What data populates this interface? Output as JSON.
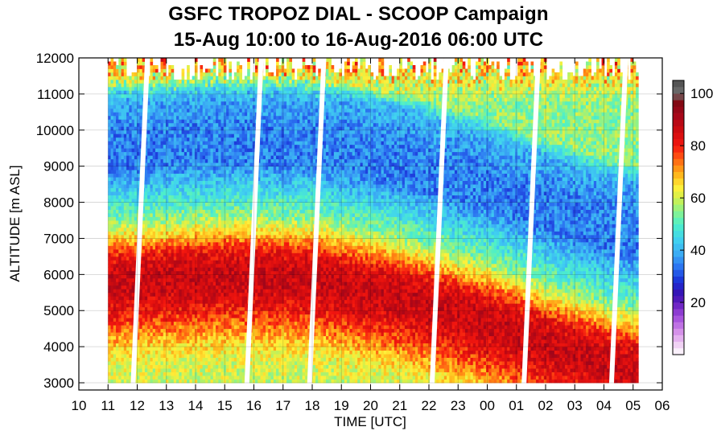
{
  "chart_data": {
    "type": "heatmap",
    "title": "GSFC TROPOZ DIAL - SCOOP Campaign",
    "subtitle": "15-Aug 10:00 to 16-Aug-2016 06:00 UTC",
    "xlabel": "TIME [UTC]",
    "ylabel": "ALTITUDE [m ASL]",
    "x_tick_labels": [
      "10",
      "11",
      "12",
      "13",
      "14",
      "15",
      "16",
      "17",
      "18",
      "19",
      "20",
      "21",
      "22",
      "23",
      "00",
      "01",
      "02",
      "03",
      "04",
      "05",
      "06"
    ],
    "y_ticks": [
      3000,
      4000,
      5000,
      6000,
      7000,
      8000,
      9000,
      10000,
      11000,
      12000
    ],
    "ylim": [
      2800,
      12000
    ],
    "xlim_hours": [
      10,
      30
    ],
    "data_start_hour": 11,
    "data_end_hour": 29.1,
    "colorbar_ticks": [
      20,
      40,
      60,
      80,
      100
    ],
    "colorbar_range": [
      0,
      105
    ],
    "grid": true,
    "ozone_ppbv_profile": [
      {
        "altitude": 3000,
        "ppbv": 60
      },
      {
        "altitude": 3500,
        "ppbv": 61
      },
      {
        "altitude": 4000,
        "ppbv": 66
      },
      {
        "altitude": 4500,
        "ppbv": 74
      },
      {
        "altitude": 5000,
        "ppbv": 82
      },
      {
        "altitude": 5500,
        "ppbv": 86
      },
      {
        "altitude": 6000,
        "ppbv": 87
      },
      {
        "altitude": 6500,
        "ppbv": 82
      },
      {
        "altitude": 7000,
        "ppbv": 68
      },
      {
        "altitude": 7500,
        "ppbv": 55
      },
      {
        "altitude": 8000,
        "ppbv": 48
      },
      {
        "altitude": 9000,
        "ppbv": 35
      },
      {
        "altitude": 10000,
        "ppbv": 35
      },
      {
        "altitude": 11000,
        "ppbv": 40
      },
      {
        "altitude": 11500,
        "ppbv": 55
      }
    ],
    "layer_top_altitude_by_hour": [
      {
        "hour": 11,
        "altitude": 6900
      },
      {
        "hour": 15,
        "altitude": 7100
      },
      {
        "hour": 18,
        "altitude": 7000
      },
      {
        "hour": 21,
        "altitude": 6500
      },
      {
        "hour": 24,
        "altitude": 5800
      },
      {
        "hour": 26,
        "altitude": 5200
      },
      {
        "hour": 28,
        "altitude": 4700
      },
      {
        "hour": 29,
        "altitude": 4500
      }
    ]
  }
}
